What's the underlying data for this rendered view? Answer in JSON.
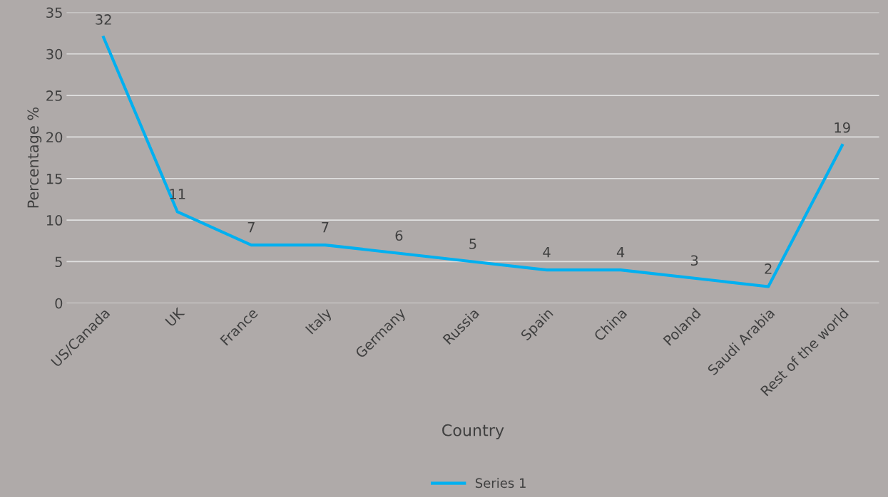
{
  "chart_data": {
    "type": "line",
    "xlabel": "Country",
    "ylabel": "Percentage %",
    "categories": [
      "US/Canada",
      "UK",
      "France",
      "Italy",
      "Germany",
      "Russia",
      "Spain",
      "China",
      "Poland",
      "Saudi Arabia",
      "Rest of the world"
    ],
    "series": [
      {
        "name": "Series 1",
        "color": "#00b0f0",
        "values": [
          32,
          11,
          7,
          7,
          6,
          5,
          4,
          4,
          3,
          2,
          19
        ]
      }
    ],
    "ylim": [
      0,
      35
    ],
    "yticks": [
      0,
      5,
      10,
      15,
      20,
      25,
      30,
      35
    ],
    "grid": "y",
    "legend": "bottom",
    "data_labels": true,
    "marker": "none",
    "line_style": "solid"
  }
}
